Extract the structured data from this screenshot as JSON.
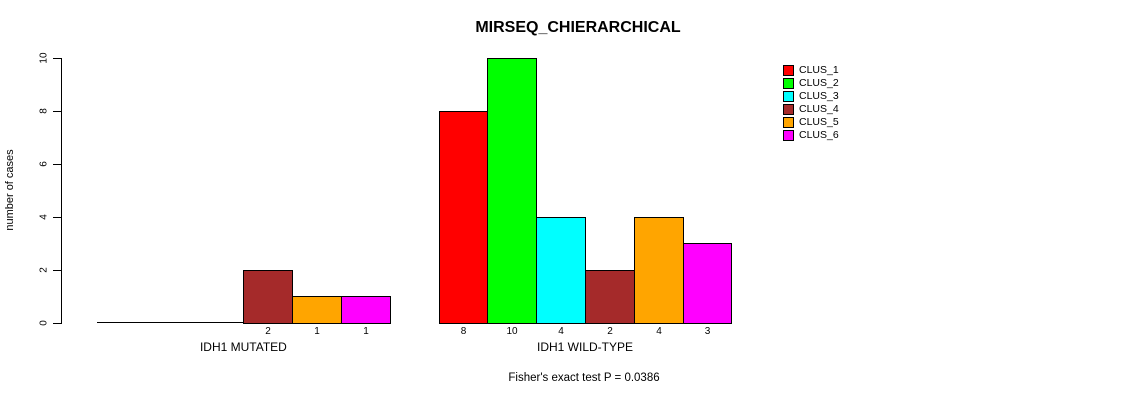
{
  "title": "MIRSEQ_CHIERARCHICAL",
  "subtitle": "Fisher's exact test P = 0.0386",
  "y_axis": {
    "label": "number of cases"
  },
  "legend": {
    "items": [
      {
        "label": "CLUS_1",
        "color": "#FF0000"
      },
      {
        "label": "CLUS_2",
        "color": "#00FF00"
      },
      {
        "label": "CLUS_3",
        "color": "#00FFFF"
      },
      {
        "label": "CLUS_4",
        "color": "#A52A2A"
      },
      {
        "label": "CLUS_5",
        "color": "#FFA500"
      },
      {
        "label": "CLUS_6",
        "color": "#FF00FF"
      }
    ]
  },
  "chart_data": {
    "type": "bar",
    "title": "MIRSEQ_CHIERARCHICAL",
    "xlabel": "",
    "ylabel": "number of cases",
    "ylim": [
      0,
      10
    ],
    "yticks": [
      0,
      2,
      4,
      6,
      8,
      10
    ],
    "grid": false,
    "legend_position": "top-right",
    "annotation": "Fisher's exact test P = 0.0386",
    "categories": [
      "IDH1 MUTATED",
      "IDH1 WILD-TYPE"
    ],
    "series": [
      {
        "name": "CLUS_1",
        "color": "#FF0000",
        "values": [
          0,
          8
        ]
      },
      {
        "name": "CLUS_2",
        "color": "#00FF00",
        "values": [
          0,
          10
        ]
      },
      {
        "name": "CLUS_3",
        "color": "#00FFFF",
        "values": [
          0,
          4
        ]
      },
      {
        "name": "CLUS_4",
        "color": "#A52A2A",
        "values": [
          2,
          2
        ]
      },
      {
        "name": "CLUS_5",
        "color": "#FFA500",
        "values": [
          1,
          4
        ]
      },
      {
        "name": "CLUS_6",
        "color": "#FF00FF",
        "values": [
          1,
          3
        ]
      }
    ],
    "groups": [
      {
        "label": "IDH1 MUTATED",
        "values": [
          0,
          0,
          0,
          2,
          1,
          1
        ],
        "bar_labels": [
          "",
          "",
          "",
          "2",
          "1",
          "1"
        ]
      },
      {
        "label": "IDH1 WILD-TYPE",
        "values": [
          8,
          10,
          4,
          2,
          4,
          3
        ],
        "bar_labels": [
          "8",
          "10",
          "4",
          "2",
          "4",
          "3"
        ]
      }
    ]
  }
}
